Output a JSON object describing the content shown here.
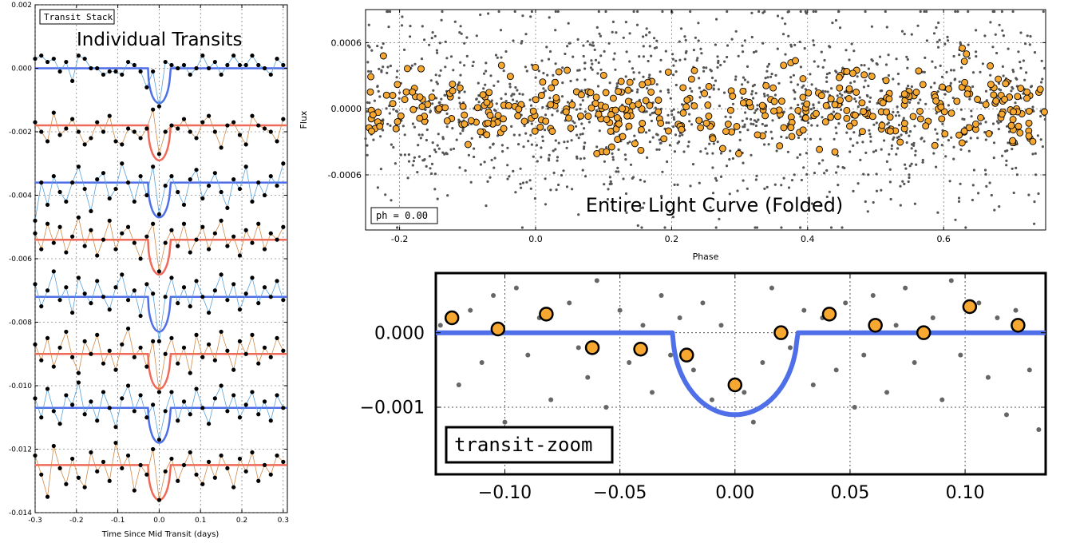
{
  "chart_data": [
    {
      "type": "line",
      "id": "transit-stack",
      "legend_label": "Transit Stack",
      "title": "Individual Transits",
      "xlabel": "Time Since Mid Transit (days)",
      "ylabel": "",
      "xlim": [
        -0.3,
        0.31
      ],
      "ylim": [
        -0.014,
        0.002
      ],
      "xticks": [
        -0.3,
        -0.2,
        -0.1,
        0.0,
        0.1,
        0.2,
        0.3
      ],
      "xtick_labels": [
        "-0.3",
        "-0.2",
        "-0.1",
        "0.0",
        "0.1",
        "0.2",
        "0.3"
      ],
      "yticks": [
        0.002,
        0.0,
        -0.002,
        -0.004,
        -0.006,
        -0.008,
        -0.01,
        -0.012,
        -0.014
      ],
      "ytick_labels": [
        "0.002",
        "0.000",
        "-0.002",
        "-0.004",
        "-0.006",
        "-0.008",
        "-0.010",
        "-0.012",
        "-0.014"
      ],
      "grid": true,
      "transit": {
        "half_width": 0.027,
        "depth": 0.0011
      },
      "transits": [
        {
          "offset": 0.0,
          "model_color": "#4f6fe8",
          "data_color": "#5aa0d8",
          "x": [
            -0.3,
            -0.285,
            -0.27,
            -0.255,
            -0.24,
            -0.225,
            -0.21,
            -0.195,
            -0.18,
            -0.165,
            -0.15,
            -0.135,
            -0.12,
            -0.105,
            -0.09,
            -0.075,
            -0.06,
            -0.045,
            -0.03,
            -0.015,
            0.0,
            0.015,
            0.03,
            0.045,
            0.06,
            0.075,
            0.09,
            0.105,
            0.12,
            0.135,
            0.15,
            0.165,
            0.18,
            0.195,
            0.21,
            0.225,
            0.24,
            0.255,
            0.27,
            0.285,
            0.3
          ],
          "y": [
            0.0003,
            0.0004,
            0.0002,
            0.0003,
            -0.0001,
            0.0002,
            -0.0004,
            0.0004,
            0.0003,
            0.0,
            0.0,
            -0.0002,
            -0.0001,
            -0.0001,
            -0.0002,
            0.0002,
            0.0001,
            -0.0001,
            -0.0006,
            -0.0001,
            -0.0012,
            0.0002,
            0.0001,
            0.0,
            0.0001,
            -0.0002,
            0.0,
            0.0004,
            0.0,
            0.0002,
            -0.0002,
            0.0001,
            0.0004,
            0.0001,
            0.0001,
            0.0004,
            0.0001,
            0.0,
            -0.0002,
            0.0003,
            0.0001
          ]
        },
        {
          "offset": -0.0018,
          "model_color": "#f06a5a",
          "data_color": "#d08a4a",
          "x": [
            -0.3,
            -0.285,
            -0.27,
            -0.255,
            -0.24,
            -0.225,
            -0.21,
            -0.195,
            -0.18,
            -0.165,
            -0.15,
            -0.135,
            -0.12,
            -0.105,
            -0.09,
            -0.075,
            -0.06,
            -0.045,
            -0.03,
            -0.015,
            0.0,
            0.015,
            0.03,
            0.045,
            0.06,
            0.075,
            0.09,
            0.105,
            0.12,
            0.135,
            0.15,
            0.165,
            0.18,
            0.195,
            0.21,
            0.225,
            0.24,
            0.255,
            0.27,
            0.285,
            0.3
          ],
          "y": [
            -0.0017,
            -0.002,
            -0.0023,
            -0.0014,
            -0.0021,
            -0.0019,
            -0.0016,
            -0.002,
            -0.0024,
            -0.0022,
            -0.0017,
            -0.002,
            -0.0015,
            -0.0023,
            -0.0024,
            -0.0019,
            -0.002,
            -0.0022,
            -0.0019,
            -0.0013,
            -0.0027,
            -0.002,
            -0.0018,
            -0.0019,
            -0.0016,
            -0.002,
            -0.0022,
            -0.0017,
            -0.0015,
            -0.002,
            -0.0025,
            -0.0018,
            -0.0017,
            -0.0021,
            -0.0024,
            -0.0015,
            -0.0018,
            -0.0019,
            -0.002,
            -0.0023,
            -0.0016
          ]
        },
        {
          "offset": -0.0036,
          "model_color": "#4f6fe8",
          "data_color": "#5aa0d8",
          "x": [
            -0.3,
            -0.285,
            -0.27,
            -0.255,
            -0.24,
            -0.225,
            -0.21,
            -0.195,
            -0.18,
            -0.165,
            -0.15,
            -0.135,
            -0.12,
            -0.105,
            -0.09,
            -0.075,
            -0.06,
            -0.045,
            -0.03,
            -0.015,
            0.0,
            0.015,
            0.03,
            0.045,
            0.06,
            0.075,
            0.09,
            0.105,
            0.12,
            0.135,
            0.15,
            0.165,
            0.18,
            0.195,
            0.21,
            0.225,
            0.24,
            0.255,
            0.27,
            0.285,
            0.3
          ],
          "y": [
            -0.0048,
            -0.0036,
            -0.0043,
            -0.0034,
            -0.0039,
            -0.0042,
            -0.0036,
            -0.0031,
            -0.0038,
            -0.0045,
            -0.0035,
            -0.0033,
            -0.0041,
            -0.0038,
            -0.003,
            -0.0036,
            -0.0042,
            -0.0034,
            -0.004,
            -0.0031,
            -0.0046,
            -0.0037,
            -0.0034,
            -0.0039,
            -0.0043,
            -0.0035,
            -0.0032,
            -0.0041,
            -0.0037,
            -0.0033,
            -0.0039,
            -0.0044,
            -0.0035,
            -0.0038,
            -0.0031,
            -0.0042,
            -0.0036,
            -0.004,
            -0.0034,
            -0.0037,
            -0.003
          ]
        },
        {
          "offset": -0.0054,
          "model_color": "#f06a5a",
          "data_color": "#d08a4a",
          "x": [
            -0.3,
            -0.285,
            -0.27,
            -0.255,
            -0.24,
            -0.225,
            -0.21,
            -0.195,
            -0.18,
            -0.165,
            -0.15,
            -0.135,
            -0.12,
            -0.105,
            -0.09,
            -0.075,
            -0.06,
            -0.045,
            -0.03,
            -0.015,
            0.0,
            0.015,
            0.03,
            0.045,
            0.06,
            0.075,
            0.09,
            0.105,
            0.12,
            0.135,
            0.15,
            0.165,
            0.18,
            0.195,
            0.21,
            0.225,
            0.24,
            0.255,
            0.27,
            0.285,
            0.3
          ],
          "y": [
            -0.0052,
            -0.0057,
            -0.0049,
            -0.0055,
            -0.005,
            -0.0058,
            -0.0053,
            -0.0047,
            -0.0056,
            -0.0051,
            -0.0059,
            -0.0054,
            -0.0048,
            -0.0057,
            -0.0052,
            -0.005,
            -0.0055,
            -0.006,
            -0.0053,
            -0.0049,
            -0.0064,
            -0.0055,
            -0.0051,
            -0.0056,
            -0.0049,
            -0.0058,
            -0.0054,
            -0.005,
            -0.0057,
            -0.0052,
            -0.0048,
            -0.0056,
            -0.0053,
            -0.0059,
            -0.0051,
            -0.0055,
            -0.0049,
            -0.0057,
            -0.0052,
            -0.0054,
            -0.005
          ]
        },
        {
          "offset": -0.0072,
          "model_color": "#4f6fe8",
          "data_color": "#5aa0d8",
          "x": [
            -0.3,
            -0.285,
            -0.27,
            -0.255,
            -0.24,
            -0.225,
            -0.21,
            -0.195,
            -0.18,
            -0.165,
            -0.15,
            -0.135,
            -0.12,
            -0.105,
            -0.09,
            -0.075,
            -0.06,
            -0.045,
            -0.03,
            -0.015,
            0.0,
            0.015,
            0.03,
            0.045,
            0.06,
            0.075,
            0.09,
            0.105,
            0.12,
            0.135,
            0.15,
            0.165,
            0.18,
            0.195,
            0.21,
            0.225,
            0.24,
            0.255,
            0.27,
            0.285,
            0.3
          ],
          "y": [
            -0.0068,
            -0.0075,
            -0.007,
            -0.0064,
            -0.0073,
            -0.0069,
            -0.0077,
            -0.0066,
            -0.0071,
            -0.0074,
            -0.0067,
            -0.0072,
            -0.0076,
            -0.0069,
            -0.0065,
            -0.0073,
            -0.007,
            -0.0078,
            -0.0068,
            -0.0071,
            -0.0086,
            -0.0072,
            -0.0066,
            -0.0074,
            -0.0069,
            -0.0075,
            -0.0067,
            -0.0072,
            -0.0077,
            -0.007,
            -0.0065,
            -0.0073,
            -0.0068,
            -0.0076,
            -0.0071,
            -0.0066,
            -0.0074,
            -0.0069,
            -0.0072,
            -0.0067,
            -0.0073
          ]
        },
        {
          "offset": -0.009,
          "model_color": "#f06a5a",
          "data_color": "#d08a4a",
          "x": [
            -0.3,
            -0.285,
            -0.27,
            -0.255,
            -0.24,
            -0.225,
            -0.21,
            -0.195,
            -0.18,
            -0.165,
            -0.15,
            -0.135,
            -0.12,
            -0.105,
            -0.09,
            -0.075,
            -0.06,
            -0.045,
            -0.03,
            -0.015,
            0.0,
            0.015,
            0.03,
            0.045,
            0.06,
            0.075,
            0.09,
            0.105,
            0.12,
            0.135,
            0.15,
            0.165,
            0.18,
            0.195,
            0.21,
            0.225,
            0.24,
            0.255,
            0.27,
            0.285,
            0.3
          ],
          "y": [
            -0.0087,
            -0.0092,
            -0.0085,
            -0.0094,
            -0.0088,
            -0.0083,
            -0.0091,
            -0.0096,
            -0.0086,
            -0.009,
            -0.0084,
            -0.0093,
            -0.0089,
            -0.0095,
            -0.0087,
            -0.0082,
            -0.0091,
            -0.0088,
            -0.0094,
            -0.0086,
            -0.0102,
            -0.009,
            -0.0085,
            -0.0093,
            -0.0088,
            -0.0096,
            -0.0084,
            -0.0091,
            -0.0087,
            -0.0092,
            -0.0083,
            -0.0089,
            -0.0095,
            -0.0086,
            -0.009,
            -0.0084,
            -0.0093,
            -0.0088,
            -0.0091,
            -0.0085,
            -0.0089
          ]
        },
        {
          "offset": -0.0107,
          "model_color": "#4f6fe8",
          "data_color": "#5aa0d8",
          "x": [
            -0.3,
            -0.285,
            -0.27,
            -0.255,
            -0.24,
            -0.225,
            -0.21,
            -0.195,
            -0.18,
            -0.165,
            -0.15,
            -0.135,
            -0.12,
            -0.105,
            -0.09,
            -0.075,
            -0.06,
            -0.045,
            -0.03,
            -0.015,
            0.0,
            0.015,
            0.03,
            0.045,
            0.06,
            0.075,
            0.09,
            0.105,
            0.12,
            0.135,
            0.15,
            0.165,
            0.18,
            0.195,
            0.21,
            0.225,
            0.24,
            0.255,
            0.27,
            0.285,
            0.3
          ],
          "y": [
            -0.0104,
            -0.011,
            -0.0101,
            -0.0108,
            -0.0112,
            -0.0103,
            -0.0106,
            -0.0099,
            -0.0109,
            -0.0105,
            -0.0111,
            -0.0102,
            -0.0107,
            -0.0113,
            -0.0104,
            -0.01,
            -0.0108,
            -0.0103,
            -0.011,
            -0.0106,
            -0.0117,
            -0.0108,
            -0.0102,
            -0.0111,
            -0.0105,
            -0.0109,
            -0.0101,
            -0.0107,
            -0.0112,
            -0.0104,
            -0.01,
            -0.0108,
            -0.0103,
            -0.011,
            -0.0106,
            -0.0102,
            -0.0109,
            -0.0105,
            -0.0111,
            -0.0103,
            -0.0107
          ]
        },
        {
          "offset": -0.0125,
          "model_color": "#f06a5a",
          "data_color": "#d08a4a",
          "x": [
            -0.3,
            -0.285,
            -0.27,
            -0.255,
            -0.24,
            -0.225,
            -0.21,
            -0.195,
            -0.18,
            -0.165,
            -0.15,
            -0.135,
            -0.12,
            -0.105,
            -0.09,
            -0.075,
            -0.06,
            -0.045,
            -0.03,
            -0.015,
            0.0,
            0.015,
            0.03,
            0.045,
            0.06,
            0.075,
            0.09,
            0.105,
            0.12,
            0.135,
            0.15,
            0.165,
            0.18,
            0.195,
            0.21,
            0.225,
            0.24,
            0.255,
            0.27,
            0.285,
            0.3
          ],
          "y": [
            -0.0122,
            -0.0128,
            -0.0135,
            -0.0119,
            -0.0126,
            -0.0131,
            -0.0123,
            -0.0129,
            -0.0132,
            -0.0121,
            -0.0127,
            -0.0124,
            -0.013,
            -0.0118,
            -0.0126,
            -0.0122,
            -0.0133,
            -0.0125,
            -0.0128,
            -0.012,
            -0.0136,
            -0.0127,
            -0.0123,
            -0.013,
            -0.0125,
            -0.0121,
            -0.0128,
            -0.0131,
            -0.0124,
            -0.0129,
            -0.0122,
            -0.0126,
            -0.0132,
            -0.0123,
            -0.0127,
            -0.0121,
            -0.013,
            -0.0125,
            -0.0128,
            -0.0122,
            -0.0124
          ]
        }
      ]
    },
    {
      "type": "scatter",
      "id": "folded-light-curve",
      "title": "Entire Light Curve (Folded)",
      "xlabel": "Phase",
      "ylabel": "Flux",
      "xlim": [
        -0.25,
        0.75
      ],
      "ylim": [
        -0.0011,
        0.0009
      ],
      "xticks": [
        -0.2,
        0.0,
        0.2,
        0.4,
        0.6
      ],
      "xtick_labels": [
        "-0.2",
        "0.0",
        "0.2",
        "0.4",
        "0.6"
      ],
      "yticks": [
        0.0006,
        0.0,
        -0.0006
      ],
      "ytick_labels": [
        "0.0006",
        "0.0000",
        "-0.0006"
      ],
      "grid": true,
      "annotation": "ph = 0.00",
      "series": [
        {
          "name": "",
          "kind": "raw",
          "color": "#555555",
          "n_points": 1400,
          "sigma": 0.00045
        },
        {
          "name": "",
          "kind": "binned",
          "color": "#f7a830",
          "n_points": 400,
          "sigma": 0.00018
        }
      ]
    },
    {
      "type": "scatter",
      "id": "transit-zoom",
      "legend_label": "transit-zoom",
      "xlim": [
        -0.13,
        0.135
      ],
      "ylim": [
        -0.0019,
        0.0008
      ],
      "xticks": [
        -0.1,
        -0.05,
        0.0,
        0.05,
        0.1
      ],
      "xtick_labels": [
        "−0.10",
        "−0.05",
        "0.00",
        "0.05",
        "0.10"
      ],
      "yticks": [
        0.0,
        -0.001
      ],
      "ytick_labels": [
        "0.000",
        "−0.001"
      ],
      "grid": true,
      "binned": {
        "x": [
          -0.123,
          -0.103,
          -0.082,
          -0.062,
          -0.041,
          -0.021,
          0.0,
          0.02,
          0.041,
          0.061,
          0.082,
          0.102,
          0.123
        ],
        "y": [
          0.0002,
          5e-05,
          0.00025,
          -0.0002,
          -0.00022,
          -0.0003,
          -0.0007,
          0.0,
          0.00025,
          0.0001,
          0.0,
          0.00035,
          0.0001
        ]
      },
      "raw": {
        "x": [
          -0.128,
          -0.12,
          -0.115,
          -0.11,
          -0.105,
          -0.1,
          -0.095,
          -0.09,
          -0.085,
          -0.08,
          -0.072,
          -0.068,
          -0.064,
          -0.06,
          -0.056,
          -0.05,
          -0.046,
          -0.04,
          -0.036,
          -0.032,
          -0.028,
          -0.024,
          -0.018,
          -0.014,
          -0.01,
          -0.006,
          0.004,
          0.008,
          0.012,
          0.016,
          0.024,
          0.03,
          0.034,
          0.038,
          0.044,
          0.048,
          0.052,
          0.056,
          0.06,
          0.066,
          0.07,
          0.074,
          0.078,
          0.086,
          0.09,
          0.094,
          0.098,
          0.106,
          0.11,
          0.114,
          0.118,
          0.122,
          0.128,
          0.132
        ],
        "y": [
          0.0001,
          -0.0007,
          0.0003,
          -0.0004,
          0.0005,
          -0.0012,
          0.0006,
          -0.0003,
          0.0002,
          -0.0009,
          0.0004,
          -0.0002,
          -0.0006,
          0.0007,
          -0.001,
          0.0003,
          -0.0004,
          0.0001,
          -0.0008,
          0.0005,
          -0.0003,
          0.0002,
          -0.0005,
          0.0004,
          -0.0009,
          0.0001,
          -0.0008,
          -0.0012,
          -0.0004,
          0.0006,
          -0.0002,
          0.0003,
          -0.0007,
          0.0002,
          -0.0005,
          0.0004,
          -0.001,
          -0.0003,
          0.0005,
          -0.0008,
          0.0001,
          0.0006,
          -0.0004,
          0.0002,
          -0.0009,
          0.0007,
          -0.0003,
          0.0004,
          -0.0006,
          0.0002,
          -0.0011,
          0.0003,
          -0.0005,
          -0.0013
        ]
      },
      "transit": {
        "half_width": 0.027,
        "depth": 0.0011
      }
    }
  ],
  "colors": {
    "model_blue": "#4f6fe8",
    "model_red": "#f06a5a",
    "binned_orange": "#f7a830",
    "raw_gray": "#555555"
  }
}
